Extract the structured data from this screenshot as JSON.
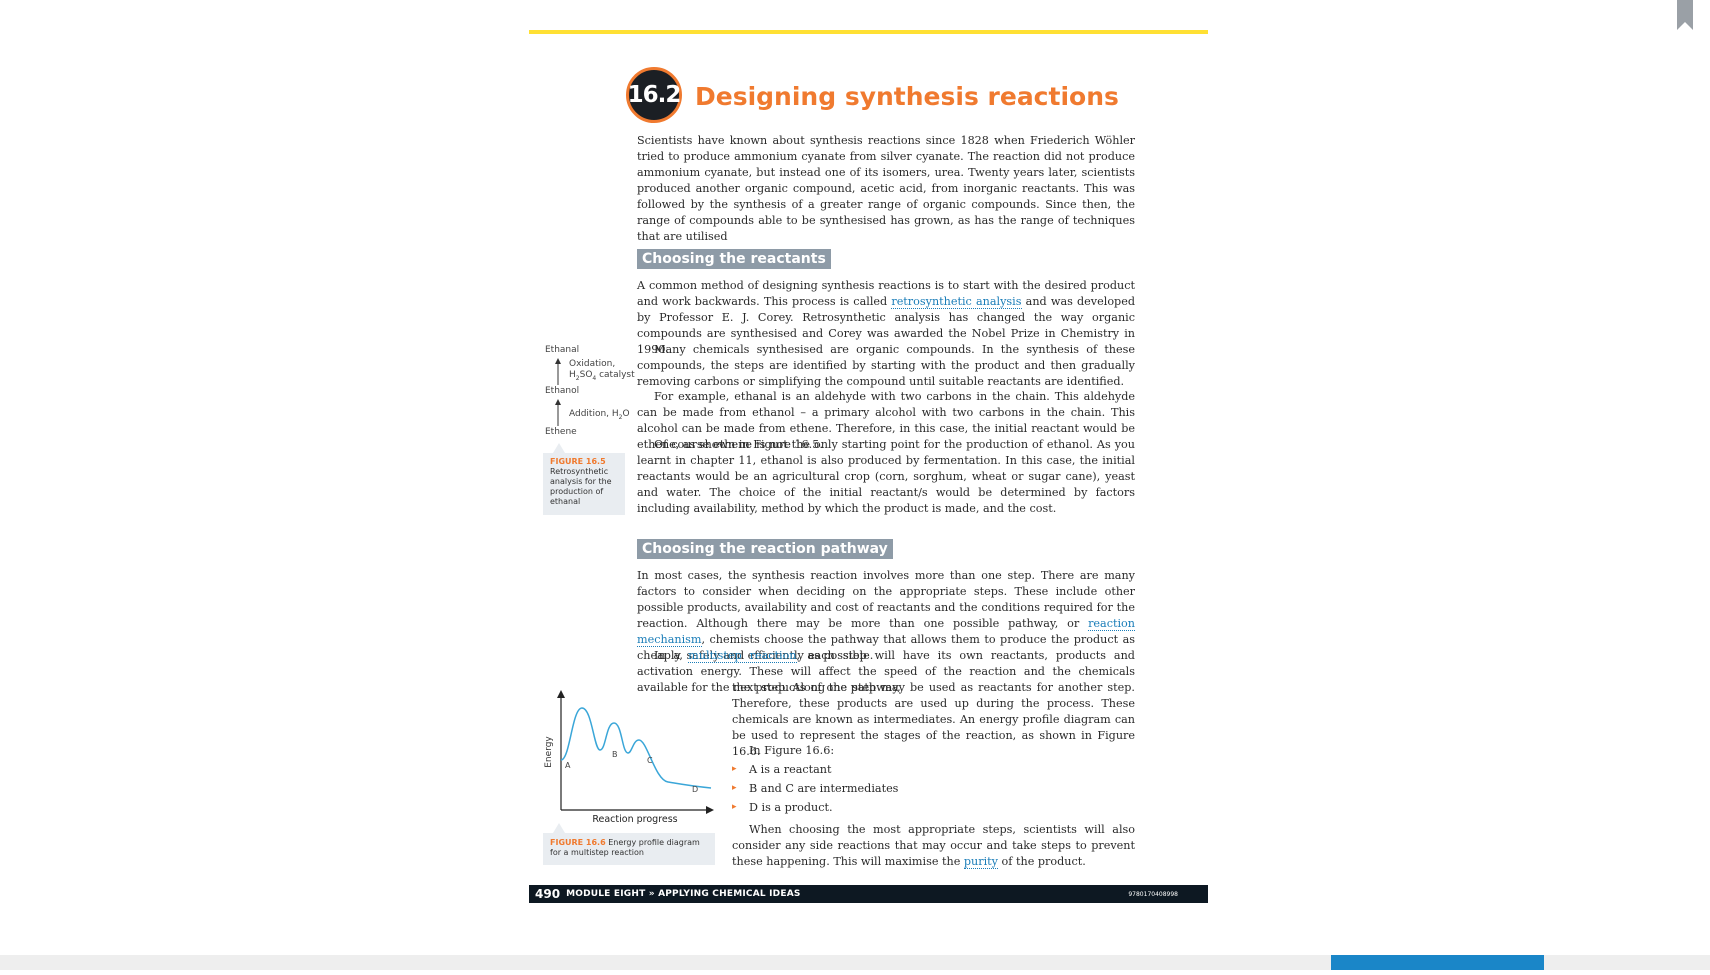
{
  "section": {
    "number": "16.2",
    "title": "Designing synthesis reactions"
  },
  "intro": "Scientists have known about synthesis reactions since 1828 when Friederich Wöhler tried to produce ammonium cyanate from silver cyanate. The reaction did not produce ammonium cyanate, but instead one of its isomers, urea. Twenty years later, scientists produced another organic compound, acetic acid, from inorganic reactants. This was followed by the synthesis of a greater range of organic compounds. Since then, the range of compounds able to be synthesised has grown, as has the range of techniques that are utilised",
  "reactants": {
    "heading": "Choosing the reactants",
    "p1_before": "A common method of designing synthesis reactions is to start with the desired product and work backwards. This process is called ",
    "p1_link": "retrosynthetic analysis",
    "p1_after": " and was developed by Professor E. J. Corey. Retrosynthetic analysis has changed the way organic compounds are synthesised and Corey was awarded the Nobel Prize in Chemistry in 1990.",
    "p2": "Many chemicals synthesised are organic compounds. In the synthesis of these compounds, the steps are identified by starting with the product and then gradually removing carbons or simplifying the compound until suitable reactants are identified.",
    "p3": "For example, ethanal is an aldehyde with two carbons in the chain. This aldehyde can be made from ethanol – a primary alcohol with two carbons in the chain. This alcohol can be made from ethene. Therefore, in this case, the initial reactant would be ethene, as shown in Figure 16.5.",
    "p4": "Of course ethene is not the only starting point for the production of ethanol. As you learnt in chapter 11, ethanol is also produced by fermentation. In this case, the initial reactants would be an agricultural crop (corn, sorghum, wheat or sugar cane), yeast and water. The choice of the initial reactant/s would be determined by factors including availability, method by which the product is made, and the cost."
  },
  "figure_16_5": {
    "ethanal": "Ethanal",
    "oxidation": "Oxidation,",
    "catalyst_pre": "H",
    "catalyst_sub1": "2",
    "catalyst_mid": "SO",
    "catalyst_sub2": "4",
    "catalyst_post": " catalyst",
    "ethanol": "Ethanol",
    "addition": "Addition, H",
    "addition_sub": "2",
    "addition_post": "O",
    "ethene": "Ethene",
    "fig_num": "FIGURE 16.5",
    "caption": "Retrosynthetic analysis for the production of ethanal"
  },
  "pathway": {
    "heading": "Choosing the reaction pathway",
    "p1_before": "In most cases, the synthesis reaction involves more than one step. There are many factors to consider when deciding on the appropriate steps. These include other possible products, availability and cost of reactants and the conditions required for the reaction. Although there may be more than one possible pathway, or ",
    "p1_link": "reaction mechanism",
    "p1_after": ", chemists choose the pathway that allows them to produce the product as cheaply, safely and efficiently as possible.",
    "p2_before": "In a ",
    "p2_link": "multistep reaction",
    "p2_after": ", each step will have its own reactants, products and activation energy. These will affect the speed of the reaction and the chemicals available for the next step. Along the pathway,",
    "p3": "the products of one step may be used as reactants for another step. Therefore, these products are used up during the process. These chemicals are known as intermediates. An energy profile diagram can be used to represent the stages of the reaction, as shown in Figure 16.6.",
    "p4": "In Figure 16.6:",
    "bullets": [
      "A is a reactant",
      "B and C are intermediates",
      "D is a product."
    ],
    "p5_before": "When choosing the most appropriate steps, scientists will also consider any side reactions that may occur and take steps to prevent these happening. This will maximise the ",
    "p5_link": "purity",
    "p5_after": " of the product."
  },
  "figure_16_6": {
    "ylabel": "Energy",
    "xlabel": "Reaction progress",
    "point_a": "A",
    "point_b": "B",
    "point_c": "C",
    "point_d": "D",
    "fig_num": "FIGURE 16.6",
    "caption": "Energy profile diagram for a multistep reaction"
  },
  "footer": {
    "page": "490",
    "module": "MODULE EIGHT » APPLYING CHEMICAL IDEAS",
    "isbn": "9780170408998"
  },
  "colors": {
    "accent_orange": "#f07a2f",
    "heading_bar": "#8e9ba7",
    "top_rule": "#ffe033",
    "link": "#1a7db8",
    "footer_bg": "#0d1822",
    "scroll_thumb": "#1a86c8"
  }
}
